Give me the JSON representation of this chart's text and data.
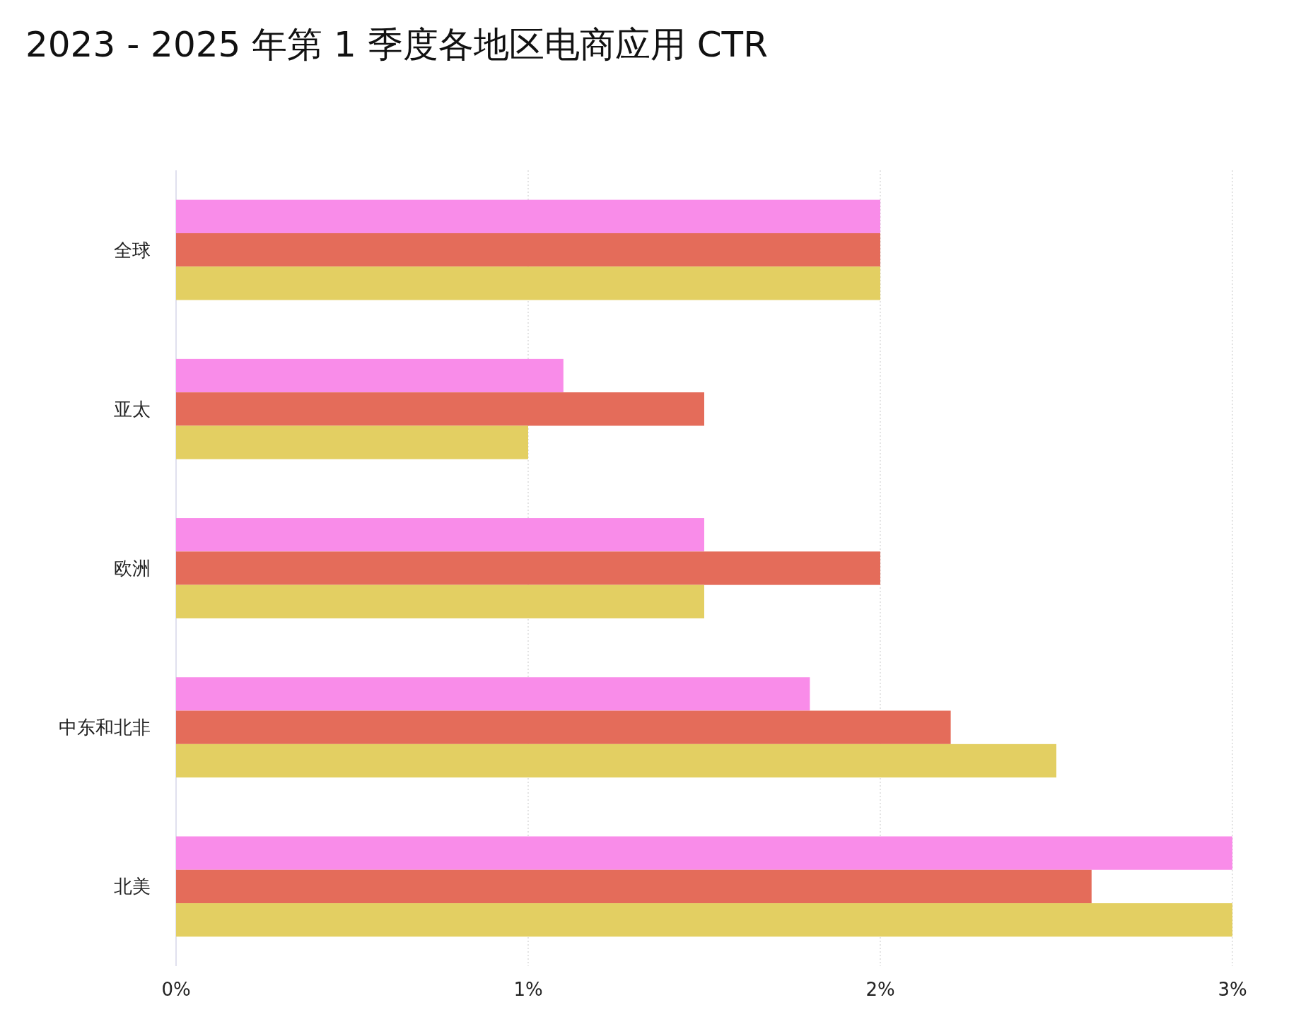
{
  "chart_data": {
    "type": "bar",
    "orientation": "horizontal",
    "title": "2023 - 2025 年第 1 季度各地区电商应用 CTR",
    "categories": [
      "全球",
      "亚太",
      "欧洲",
      "中东和北非",
      "北美"
    ],
    "series": [
      {
        "color": "#f98ce9",
        "values": [
          2,
          1.1,
          1.5,
          1.8,
          3
        ]
      },
      {
        "color": "#e46c5a",
        "values": [
          2,
          1.5,
          2,
          2.2,
          2.6
        ]
      },
      {
        "color": "#e3cf62",
        "values": [
          2,
          1,
          1.5,
          2.5,
          3
        ]
      }
    ],
    "xlim": [
      0,
      3
    ],
    "xticks": [
      {
        "value": 0,
        "label": "0%"
      },
      {
        "value": 1,
        "label": "1%"
      },
      {
        "value": 2,
        "label": "2%"
      },
      {
        "value": 3,
        "label": "3%"
      }
    ],
    "grid": "x"
  }
}
